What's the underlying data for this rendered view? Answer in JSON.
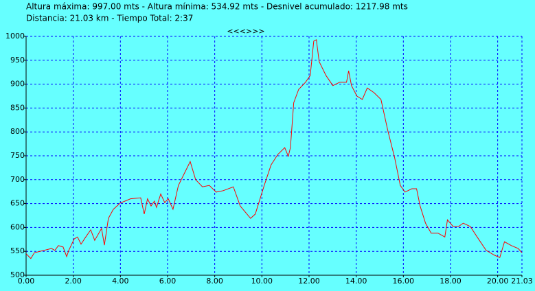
{
  "chart_data": {
    "type": "line",
    "title": "Altura máxima: 997.00 mts - Altura mínima: 534.92 mts - Desnivel acumulado: 1217.98 mts",
    "subtitle": "Distancia: 21.03 km - Tiempo Total: 2:37",
    "annotation": "<<<>>>",
    "x": [
      0.0,
      0.2,
      0.35,
      1.08,
      1.22,
      1.37,
      1.57,
      1.72,
      1.81,
      2.04,
      2.18,
      2.33,
      2.53,
      2.74,
      2.91,
      3.2,
      3.32,
      3.49,
      3.7,
      3.99,
      4.43,
      4.86,
      5.01,
      5.15,
      5.3,
      5.44,
      5.53,
      5.71,
      5.88,
      6.03,
      6.23,
      6.46,
      6.75,
      6.96,
      7.19,
      7.48,
      7.77,
      8.06,
      8.36,
      8.79,
      9.08,
      9.52,
      9.72,
      10.1,
      10.39,
      10.68,
      10.97,
      11.12,
      11.21,
      11.35,
      11.56,
      11.85,
      12.05,
      12.2,
      12.31,
      12.43,
      12.72,
      13.01,
      13.3,
      13.59,
      13.68,
      13.8,
      14.03,
      14.26,
      14.47,
      14.76,
      15.05,
      15.34,
      15.63,
      15.87,
      16.07,
      16.36,
      16.56,
      16.71,
      16.94,
      17.18,
      17.47,
      17.76,
      17.87,
      18.11,
      18.34,
      18.54,
      18.84,
      19.13,
      19.51,
      19.86,
      20.09,
      20.29,
      20.58,
      20.87,
      21.03
    ],
    "series": [
      {
        "name": "Altura",
        "color": "#ff0000",
        "values": [
          545,
          535,
          547,
          556,
          552,
          562,
          559,
          539,
          552,
          576,
          580,
          565,
          580,
          595,
          573,
          598,
          563,
          619,
          638,
          651,
          660,
          662,
          628,
          660,
          645,
          655,
          642,
          670,
          652,
          660,
          638,
          688,
          717,
          738,
          700,
          685,
          688,
          674,
          677,
          685,
          645,
          619,
          628,
          688,
          731,
          753,
          767,
          749,
          767,
          861,
          889,
          904,
          918,
          990,
          993,
          947,
          918,
          897,
          904,
          904,
          928,
          897,
          875,
          868,
          892,
          882,
          868,
          803,
          746,
          688,
          674,
          681,
          681,
          645,
          609,
          588,
          588,
          580,
          616,
          602,
          602,
          609,
          602,
          580,
          552,
          542,
          537,
          570,
          562,
          556,
          547
        ]
      }
    ],
    "xlim": [
      0,
      21.03
    ],
    "ylim": [
      500,
      1000
    ],
    "xticks": [
      {
        "value": 0,
        "label": "0.00"
      },
      {
        "value": 2,
        "label": "2.00"
      },
      {
        "value": 4,
        "label": "4.00"
      },
      {
        "value": 6,
        "label": "6.00"
      },
      {
        "value": 8,
        "label": "8.00"
      },
      {
        "value": 10,
        "label": "10.00"
      },
      {
        "value": 12,
        "label": "12.00"
      },
      {
        "value": 14,
        "label": "14.00"
      },
      {
        "value": 16,
        "label": "16.00"
      },
      {
        "value": 18,
        "label": "18.00"
      },
      {
        "value": 20,
        "label": "20.00"
      },
      {
        "value": 21.03,
        "label": "21.03"
      }
    ],
    "yticks": [
      500,
      550,
      600,
      650,
      700,
      750,
      800,
      850,
      900,
      950,
      1000
    ],
    "grid": true,
    "grid_color": "#0000ff"
  }
}
